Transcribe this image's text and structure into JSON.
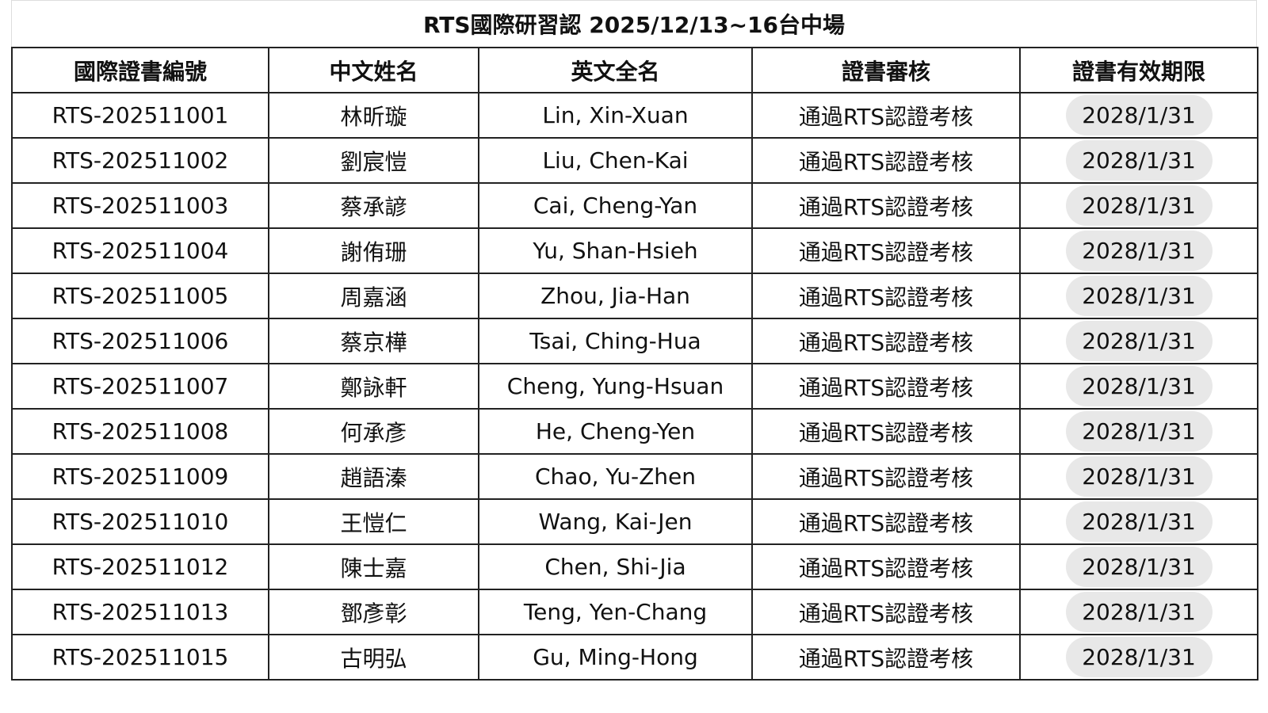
{
  "title": "RTS國際研習認 2025/12/13~16台中場",
  "colors": {
    "pill_background": "#e8e8e8",
    "border": "#222222"
  },
  "columns": [
    "國際證書編號",
    "中文姓名",
    "英文全名",
    "證書審核",
    "證書有效期限"
  ],
  "rows": [
    {
      "id": "RTS-202511001",
      "zh": "林昕璇",
      "en": "Lin, Xin-Xuan",
      "status": "通過RTS認證考核",
      "expiry": "2028/1/31"
    },
    {
      "id": "RTS-202511002",
      "zh": "劉宸愷",
      "en": "Liu, Chen-Kai",
      "status": "通過RTS認證考核",
      "expiry": "2028/1/31"
    },
    {
      "id": "RTS-202511003",
      "zh": "蔡承諺",
      "en": "Cai, Cheng-Yan",
      "status": "通過RTS認證考核",
      "expiry": "2028/1/31"
    },
    {
      "id": "RTS-202511004",
      "zh": "謝侑珊",
      "en": "Yu, Shan-Hsieh",
      "status": "通過RTS認證考核",
      "expiry": "2028/1/31"
    },
    {
      "id": "RTS-202511005",
      "zh": "周嘉涵",
      "en": "Zhou, Jia-Han",
      "status": "通過RTS認證考核",
      "expiry": "2028/1/31"
    },
    {
      "id": "RTS-202511006",
      "zh": "蔡京樺",
      "en": "Tsai, Ching-Hua",
      "status": "通過RTS認證考核",
      "expiry": "2028/1/31"
    },
    {
      "id": "RTS-202511007",
      "zh": "鄭詠軒",
      "en": "Cheng, Yung-Hsuan",
      "status": "通過RTS認證考核",
      "expiry": "2028/1/31"
    },
    {
      "id": "RTS-202511008",
      "zh": "何承彥",
      "en": "He, Cheng-Yen",
      "status": "通過RTS認證考核",
      "expiry": "2028/1/31"
    },
    {
      "id": "RTS-202511009",
      "zh": "趙語溱",
      "en": "Chao, Yu-Zhen",
      "status": "通過RTS認證考核",
      "expiry": "2028/1/31"
    },
    {
      "id": "RTS-202511010",
      "zh": "王愷仁",
      "en": "Wang, Kai-Jen",
      "status": "通過RTS認證考核",
      "expiry": "2028/1/31"
    },
    {
      "id": "RTS-202511012",
      "zh": "陳士嘉",
      "en": "Chen, Shi-Jia",
      "status": "通過RTS認證考核",
      "expiry": "2028/1/31"
    },
    {
      "id": "RTS-202511013",
      "zh": "鄧彥彰",
      "en": "Teng, Yen-Chang",
      "status": "通過RTS認證考核",
      "expiry": "2028/1/31"
    },
    {
      "id": "RTS-202511015",
      "zh": "古明弘",
      "en": "Gu, Ming-Hong",
      "status": "通過RTS認證考核",
      "expiry": "2028/1/31"
    }
  ]
}
